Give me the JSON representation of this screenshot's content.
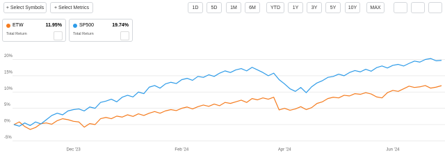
{
  "toolbar": {
    "buttons": [
      "+ Select Symbols",
      "+ Select Metrics"
    ],
    "periods": [
      "1D",
      "5D",
      "1M",
      "6M",
      "YTD",
      "1Y",
      "3Y",
      "5Y",
      "10Y",
      "MAX"
    ]
  },
  "cards": [
    {
      "change": "11.95%",
      "metric": "Total Return"
    },
    {
      "change": "19.74%",
      "metric": "Total Return"
    }
  ],
  "chart_data": {
    "type": "line",
    "categories": [
      null,
      null,
      null,
      null,
      null,
      null,
      null,
      null,
      null,
      null,
      null,
      "Dec '23",
      null,
      null,
      null,
      null,
      null,
      null,
      null,
      null,
      null,
      null,
      null,
      null,
      null,
      null,
      null,
      null,
      null,
      null,
      null,
      "Feb '24",
      null,
      null,
      null,
      null,
      null,
      null,
      null,
      null,
      null,
      null,
      null,
      null,
      null,
      null,
      null,
      null,
      null,
      null,
      "Apr '24",
      null,
      null,
      null,
      null,
      null,
      null,
      null,
      null,
      null,
      null,
      null,
      null,
      null,
      null,
      null,
      null,
      null,
      null,
      null,
      "Jun '24",
      null,
      null,
      null,
      null,
      null,
      null,
      null,
      null,
      null
    ],
    "series": [
      {
        "name": "ETW",
        "color": "#f57c1f",
        "values": [
          0,
          0.8,
          -0.6,
          -1.5,
          -0.9,
          0.3,
          0.5,
          0.1,
          1.2,
          1.8,
          1.5,
          1.0,
          0.8,
          -0.8,
          0.3,
          0.0,
          1.8,
          2.2,
          1.8,
          2.6,
          2.3,
          3.0,
          2.5,
          3.3,
          2.8,
          3.5,
          4.0,
          3.5,
          4.2,
          4.6,
          4.3,
          5.0,
          5.4,
          4.8,
          5.5,
          6.0,
          5.6,
          6.3,
          5.8,
          6.8,
          6.5,
          7.0,
          7.5,
          6.8,
          8.0,
          7.6,
          8.2,
          7.8,
          8.4,
          4.5,
          5.0,
          4.4,
          4.8,
          5.5,
          4.6,
          5.2,
          6.5,
          7.0,
          8.0,
          8.4,
          8.2,
          9.0,
          8.8,
          9.5,
          9.3,
          9.8,
          9.4,
          8.5,
          8.2,
          9.8,
          10.5,
          10.2,
          11.0,
          11.8,
          11.4,
          11.6,
          12.0,
          11.2,
          11.5,
          11.95
        ]
      },
      {
        "name": "SP500",
        "color": "#2d9be8",
        "values": [
          0.0,
          -0.5,
          0.5,
          -0.3,
          0.8,
          0.2,
          1.5,
          2.8,
          3.5,
          3.0,
          4.2,
          4.6,
          4.8,
          4.2,
          5.4,
          5.0,
          6.8,
          7.2,
          7.8,
          7.0,
          8.4,
          9.0,
          8.5,
          10.0,
          9.5,
          11.5,
          12.0,
          11.2,
          12.5,
          13.0,
          12.6,
          13.8,
          14.2,
          13.6,
          14.8,
          14.5,
          15.3,
          14.8,
          15.8,
          16.5,
          16.0,
          16.8,
          17.2,
          16.5,
          17.6,
          16.8,
          16.0,
          15.0,
          15.8,
          13.8,
          12.5,
          11.0,
          10.2,
          11.4,
          9.8,
          11.6,
          12.8,
          13.5,
          14.5,
          14.8,
          15.5,
          15.0,
          16.0,
          16.6,
          16.2,
          17.0,
          16.4,
          17.5,
          18.0,
          17.4,
          18.2,
          18.5,
          18.0,
          18.8,
          19.5,
          19.2,
          20.0,
          20.3,
          19.6,
          19.74
        ]
      }
    ],
    "ylim": [
      -6.2,
      24.6
    ],
    "yticks": [
      {
        "value": -5,
        "label": "-5%"
      },
      {
        "value": 0,
        "label": "0%"
      },
      {
        "value": 5,
        "label": "5%"
      },
      {
        "value": 10,
        "label": "10%"
      },
      {
        "value": 15,
        "label": "15%"
      },
      {
        "value": 20,
        "label": "20%"
      }
    ],
    "grid": true
  }
}
